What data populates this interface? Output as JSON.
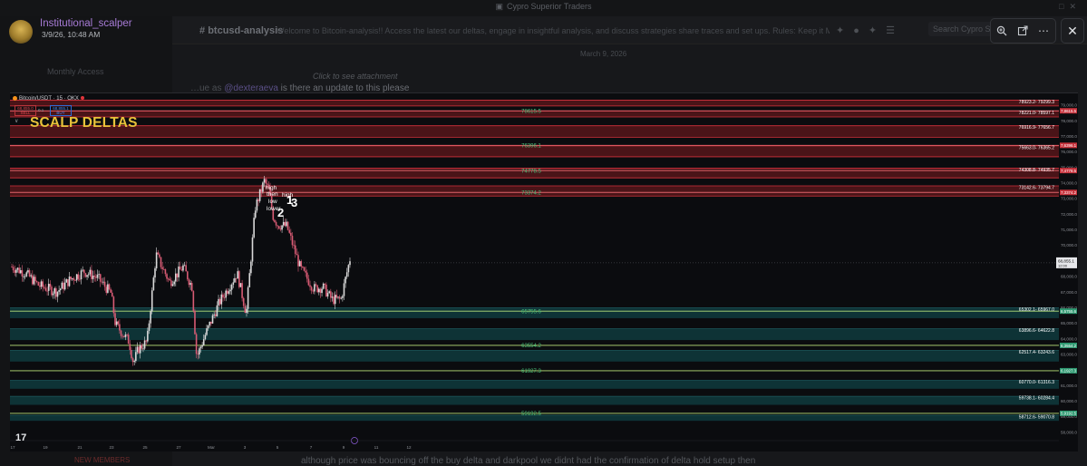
{
  "app": {
    "server_title": "Cypro Superior Traders",
    "sidebar_items": [
      "Monthly Access",
      "Institutional_scalper"
    ],
    "channel_name": "btcusd-analysis",
    "channel_topic": "Welcome to Bitcoin-analysis!! Access the latest our deltas, engage in insightful analysis, and discuss strategies share traces and set ups. Rules: Keep it Mature ...",
    "search_placeholder": "Search Cypro S",
    "date_separator": "March 9, 2026",
    "attachment_hint": "Click to see attachment",
    "reply_prefix": "…ue as",
    "reply_mention": "@dexteraeva",
    "reply_text": "is there an update to this please",
    "bottom_message": "although price was bouncing off the buy delta and darkpool we didnt had the confirmation of delta hold setup then",
    "bottom_badge": "NEW MEMBERS"
  },
  "message": {
    "author": "Institutional_scalper",
    "timestamp": "3/9/26, 10:48 AM"
  },
  "lightbox": {
    "zoom_icon": "zoom-in-icon",
    "open_icon": "open-external-icon",
    "more_icon": "more-icon",
    "close_icon": "close-icon"
  },
  "chart": {
    "symbol_line": "Bitcoin/USDT · 15 · OKX",
    "sell_price": "68,855.0",
    "sell_label": "SELL",
    "buy_price": "68,855.1",
    "buy_label": "BUY",
    "spread": "0.1",
    "title": "SCALP DELTAS",
    "annotations": [
      "high",
      "then",
      "low",
      "lower",
      "high"
    ],
    "annotation_numbers": [
      "1",
      "3",
      "2"
    ],
    "logo": "17",
    "colors": {
      "sell_zone": "#4a1418",
      "sell_line": "#d5323c",
      "buy_zone": "#0e3336",
      "buy_line": "#2fa89a",
      "level_label": "#48c27a",
      "candle_up": "#d9d9d9",
      "candle_down": "#d85b74",
      "title": "#e8c23a"
    }
  },
  "chart_data": {
    "type": "candlestick",
    "symbol": "Bitcoin/USDT",
    "timeframe": "15",
    "exchange": "OKX",
    "title": "SCALP DELTAS",
    "ylim": [
      57500,
      79500
    ],
    "y_ticks": [
      79000,
      78000,
      77000,
      76000,
      75000,
      74000,
      73000,
      72000,
      71000,
      70000,
      69000,
      68000,
      67000,
      66000,
      65000,
      64000,
      63000,
      62000,
      61000,
      60000,
      59000,
      58000
    ],
    "x_ticks": [
      "17",
      "19",
      "21",
      "23",
      "25",
      "27",
      "Mar",
      "3",
      "5",
      "7",
      "9",
      "11",
      "12"
    ],
    "last_price": 68855.1,
    "last_price_label": "68,855.1",
    "last_price_time": "12:00",
    "sell_zones": [
      {
        "low": 78923.2,
        "high": 79299.3,
        "label": "78923.2- 79299.3"
      },
      {
        "low": 78221.0,
        "high": 78597.1,
        "label": "78221.0- 78597.1"
      },
      {
        "low": 76916.9,
        "high": 77656.7,
        "label": "76916.9- 77656.7"
      },
      {
        "low": 75663.0,
        "high": 76365.2,
        "label": "75663.0- 76365.2"
      },
      {
        "low": 74308.8,
        "high": 74935.7,
        "label": "74308.8- 74935.7"
      },
      {
        "low": 73142.6,
        "high": 73794.7,
        "label": "73142.6- 73794.7"
      }
    ],
    "buy_zones": [
      {
        "low": 65302.1,
        "high": 65967.0,
        "label": "65302.1- 65967.0"
      },
      {
        "low": 63896.6,
        "high": 64622.8,
        "label": "63896.6- 64622.8"
      },
      {
        "low": 62517.4,
        "high": 63243.6,
        "label": "62517.4- 63243.6"
      },
      {
        "low": 60770.0,
        "high": 61316.3,
        "label": "60770.0- 61316.3"
      },
      {
        "low": 59738.1,
        "high": 60284.4,
        "label": "59738.1- 60284.4"
      },
      {
        "low": 58712.6,
        "high": 59070.8,
        "label": "58712.6- 59070.8"
      }
    ],
    "sell_lines": [
      {
        "value": 78615.5,
        "label": "78615.5"
      },
      {
        "value": 76396.1,
        "label": "76396.1"
      },
      {
        "value": 74778.5,
        "label": "74778.5"
      },
      {
        "value": 73374.2,
        "label": "73374.2"
      }
    ],
    "buy_lines": [
      {
        "value": 65755.6,
        "label": "65755.6"
      },
      {
        "value": 63554.2,
        "label": "63554.2"
      },
      {
        "value": 61927.3,
        "label": "61927.3"
      },
      {
        "value": 59192.5,
        "label": "59192.5"
      }
    ],
    "price_path": [
      [
        0,
        68600
      ],
      [
        0.015,
        68200
      ],
      [
        0.03,
        67400
      ],
      [
        0.05,
        67000
      ],
      [
        0.065,
        67800
      ],
      [
        0.08,
        68300
      ],
      [
        0.095,
        67900
      ],
      [
        0.11,
        66900
      ],
      [
        0.115,
        64900
      ],
      [
        0.13,
        63800
      ],
      [
        0.135,
        62400
      ],
      [
        0.14,
        63300
      ],
      [
        0.15,
        63800
      ],
      [
        0.16,
        69400
      ],
      [
        0.175,
        67600
      ],
      [
        0.19,
        68600
      ],
      [
        0.2,
        67300
      ],
      [
        0.205,
        62800
      ],
      [
        0.215,
        64300
      ],
      [
        0.23,
        66300
      ],
      [
        0.25,
        68200
      ],
      [
        0.26,
        65600
      ],
      [
        0.27,
        72400
      ],
      [
        0.28,
        74100
      ],
      [
        0.285,
        73500
      ],
      [
        0.29,
        71800
      ],
      [
        0.295,
        71300
      ],
      [
        0.305,
        71200
      ],
      [
        0.32,
        68500
      ],
      [
        0.335,
        67200
      ],
      [
        0.345,
        67300
      ],
      [
        0.355,
        66500
      ],
      [
        0.365,
        66500
      ],
      [
        0.375,
        69100
      ]
    ]
  }
}
